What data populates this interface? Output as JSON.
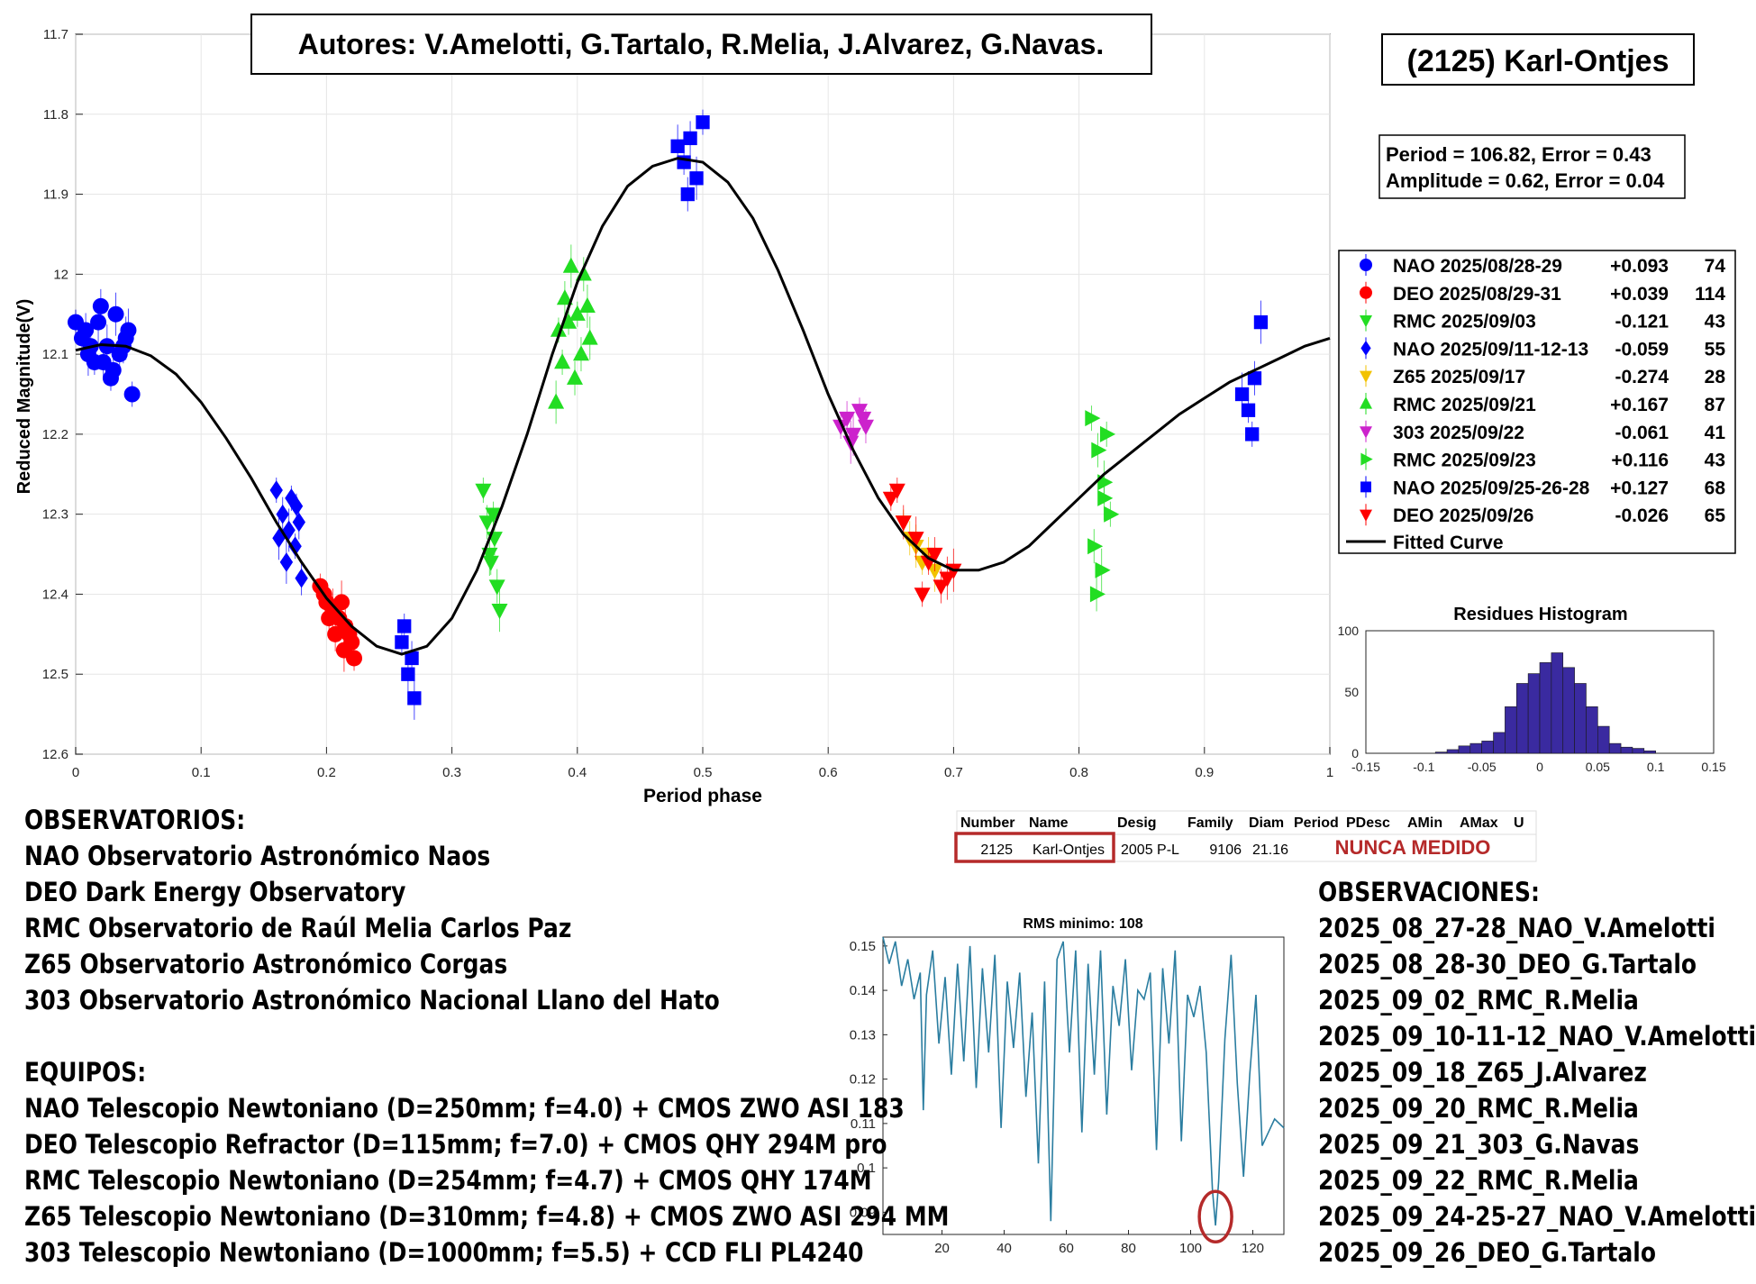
{
  "header": {
    "authors": "Autores: V.Amelotti, G.Tartalo, R.Melia, J.Alvarez, G.Navas.",
    "object_title": "(2125) Karl-Ontjes",
    "fit_period": "Period =  106.82, Error = 0.43",
    "fit_amplitude": "Amplitude = 0.62, Error = 0.04"
  },
  "colors": {
    "blue": "#0000ff",
    "red": "#ff0000",
    "green": "#22dd22",
    "gold": "#f2c200",
    "magenta": "#cc22cc",
    "curve": "#000000",
    "histogram": "#3a2aa0",
    "rms_line": "#2a7da0",
    "highlight": "#b52a2a"
  },
  "legend": [
    {
      "name": "NAO 2025/08/28-29",
      "offset": "+0.093",
      "count": "74",
      "marker": "circle",
      "color": "#0000ff"
    },
    {
      "name": "DEO 2025/08/29-31",
      "offset": "+0.039",
      "count": "114",
      "marker": "circle",
      "color": "#ff0000"
    },
    {
      "name": "RMC 2025/09/03",
      "offset": "-0.121",
      "count": "43",
      "marker": "triangle-down",
      "color": "#22dd22"
    },
    {
      "name": "NAO 2025/09/11-12-13",
      "offset": "-0.059",
      "count": "55",
      "marker": "diamond",
      "color": "#0000ff"
    },
    {
      "name": "Z65 2025/09/17",
      "offset": "-0.274",
      "count": "28",
      "marker": "triangle-down",
      "color": "#f2c200"
    },
    {
      "name": "RMC 2025/09/21",
      "offset": "+0.167",
      "count": "87",
      "marker": "triangle-up",
      "color": "#22dd22"
    },
    {
      "name": "303 2025/09/22",
      "offset": "-0.061",
      "count": "41",
      "marker": "triangle-down",
      "color": "#cc22cc"
    },
    {
      "name": "RMC 2025/09/23",
      "offset": "+0.116",
      "count": "43",
      "marker": "triangle-right",
      "color": "#22dd22"
    },
    {
      "name": "NAO 2025/09/25-26-28",
      "offset": "+0.127",
      "count": "68",
      "marker": "square",
      "color": "#0000ff"
    },
    {
      "name": "DEO 2025/09/26",
      "offset": "-0.026",
      "count": "65",
      "marker": "triangle-down",
      "color": "#ff0000"
    }
  ],
  "legend_fitted": "Fitted Curve",
  "chart_data": [
    {
      "type": "scatter",
      "xlabel": "Period phase",
      "ylabel": "Reduced Magnitude(V)",
      "xlim": [
        0,
        1
      ],
      "ylim": [
        11.7,
        12.6
      ],
      "y_reversed": true,
      "grid": true,
      "xticks": [
        "0",
        "0.1",
        "0.2",
        "0.3",
        "0.4",
        "0.5",
        "0.6",
        "0.7",
        "0.8",
        "0.9",
        "1"
      ],
      "yticks": [
        "11.7",
        "11.8",
        "11.9",
        "12",
        "12.1",
        "12.2",
        "12.3",
        "12.4",
        "12.5",
        "12.6"
      ],
      "fitted_curve": {
        "name": "Fitted Curve",
        "x": [
          0,
          0.02,
          0.04,
          0.06,
          0.08,
          0.1,
          0.12,
          0.14,
          0.16,
          0.18,
          0.2,
          0.22,
          0.24,
          0.26,
          0.28,
          0.3,
          0.32,
          0.34,
          0.36,
          0.38,
          0.4,
          0.42,
          0.44,
          0.46,
          0.48,
          0.5,
          0.52,
          0.54,
          0.56,
          0.58,
          0.6,
          0.62,
          0.64,
          0.66,
          0.68,
          0.7,
          0.72,
          0.74,
          0.76,
          0.78,
          0.8,
          0.82,
          0.84,
          0.86,
          0.88,
          0.9,
          0.92,
          0.94,
          0.96,
          0.98,
          1.0
        ],
        "y": [
          12.095,
          12.088,
          12.09,
          12.102,
          12.125,
          12.16,
          12.205,
          12.255,
          12.31,
          12.36,
          12.405,
          12.44,
          12.465,
          12.475,
          12.465,
          12.43,
          12.37,
          12.29,
          12.2,
          12.1,
          12.01,
          11.94,
          11.89,
          11.865,
          11.855,
          11.86,
          11.885,
          11.93,
          11.995,
          12.07,
          12.15,
          12.22,
          12.28,
          12.325,
          12.355,
          12.37,
          12.37,
          12.36,
          12.34,
          12.31,
          12.28,
          12.25,
          12.225,
          12.2,
          12.175,
          12.155,
          12.135,
          12.12,
          12.105,
          12.09,
          12.08
        ]
      },
      "series": [
        {
          "name": "NAO 2025/08/28-29",
          "marker": "circle",
          "color": "#0000ff",
          "x": [
            0.0,
            0.005,
            0.01,
            0.015,
            0.02,
            0.025,
            0.03,
            0.035,
            0.04,
            0.045,
            0.008,
            0.018,
            0.028,
            0.038,
            0.042,
            0.012,
            0.022,
            0.032
          ],
          "y": [
            12.06,
            12.08,
            12.1,
            12.11,
            12.04,
            12.09,
            12.12,
            12.1,
            12.08,
            12.15,
            12.07,
            12.06,
            12.13,
            12.09,
            12.07,
            12.09,
            12.11,
            12.05
          ]
        },
        {
          "name": "DEO 2025/08/29-31",
          "marker": "circle",
          "color": "#ff0000",
          "x": [
            0.195,
            0.2,
            0.205,
            0.21,
            0.215,
            0.22,
            0.198,
            0.207,
            0.212,
            0.218,
            0.202,
            0.214,
            0.222
          ],
          "y": [
            12.39,
            12.41,
            12.42,
            12.43,
            12.44,
            12.46,
            12.4,
            12.45,
            12.41,
            12.45,
            12.43,
            12.47,
            12.48
          ]
        },
        {
          "name": "RMC 2025/09/03",
          "marker": "triangle-down",
          "color": "#22dd22",
          "x": [
            0.325,
            0.328,
            0.33,
            0.333,
            0.336,
            0.338,
            0.331,
            0.334
          ],
          "y": [
            12.27,
            12.31,
            12.35,
            12.3,
            12.39,
            12.42,
            12.36,
            12.33
          ]
        },
        {
          "name": "NAO 2025/09/11-12-13",
          "marker": "diamond",
          "color": "#0000ff",
          "x": [
            0.16,
            0.165,
            0.17,
            0.175,
            0.18,
            0.168,
            0.172,
            0.178,
            0.162,
            0.176
          ],
          "y": [
            12.27,
            12.3,
            12.32,
            12.34,
            12.38,
            12.36,
            12.28,
            12.31,
            12.33,
            12.29
          ]
        },
        {
          "name": "Z65 2025/09/17",
          "marker": "triangle-down",
          "color": "#f2c200",
          "x": [
            0.66,
            0.665,
            0.67,
            0.675,
            0.68,
            0.685
          ],
          "y": [
            12.31,
            12.33,
            12.34,
            12.36,
            12.35,
            12.37
          ]
        },
        {
          "name": "RMC 2025/09/21",
          "marker": "triangle-up",
          "color": "#22dd22",
          "x": [
            0.385,
            0.39,
            0.395,
            0.4,
            0.405,
            0.41,
            0.388,
            0.398,
            0.408,
            0.393,
            0.403,
            0.383
          ],
          "y": [
            12.07,
            12.03,
            11.99,
            12.05,
            12.0,
            12.08,
            12.11,
            12.13,
            12.04,
            12.06,
            12.1,
            12.16
          ]
        },
        {
          "name": "303 2025/09/22",
          "marker": "triangle-down",
          "color": "#cc22cc",
          "x": [
            0.61,
            0.615,
            0.62,
            0.625,
            0.63,
            0.618,
            0.628
          ],
          "y": [
            12.19,
            12.18,
            12.2,
            12.17,
            12.19,
            12.21,
            12.18
          ]
        },
        {
          "name": "RMC 2025/09/23",
          "marker": "triangle-right",
          "color": "#22dd22",
          "x": [
            0.81,
            0.815,
            0.82,
            0.825,
            0.812,
            0.818,
            0.822,
            0.814,
            0.82
          ],
          "y": [
            12.18,
            12.22,
            12.26,
            12.3,
            12.34,
            12.37,
            12.2,
            12.4,
            12.28
          ]
        },
        {
          "name": "NAO 2025/09/25-26-28",
          "marker": "square",
          "color": "#0000ff",
          "x": [
            0.26,
            0.265,
            0.27,
            0.262,
            0.268,
            0.48,
            0.485,
            0.49,
            0.495,
            0.5,
            0.488,
            0.93,
            0.935,
            0.94,
            0.945,
            0.938
          ],
          "y": [
            12.46,
            12.5,
            12.53,
            12.44,
            12.48,
            11.84,
            11.86,
            11.83,
            11.88,
            11.81,
            11.9,
            12.15,
            12.17,
            12.13,
            12.06,
            12.2
          ]
        },
        {
          "name": "DEO 2025/09/26",
          "marker": "triangle-down",
          "color": "#ff0000",
          "x": [
            0.65,
            0.66,
            0.67,
            0.68,
            0.69,
            0.7,
            0.675,
            0.685,
            0.695,
            0.655
          ],
          "y": [
            12.28,
            12.31,
            12.33,
            12.36,
            12.39,
            12.37,
            12.4,
            12.35,
            12.38,
            12.27
          ]
        }
      ]
    },
    {
      "type": "bar",
      "title": "Residues Histogram",
      "xlim": [
        -0.15,
        0.15
      ],
      "ylim": [
        0,
        100
      ],
      "xticks": [
        "-0.15",
        "-0.1",
        "-0.05",
        "0",
        "0.05",
        "0.1",
        "0.15"
      ],
      "yticks": [
        "0",
        "50",
        "100"
      ],
      "bin_width": 0.01,
      "bins_start": -0.09,
      "values": [
        1,
        3,
        6,
        8,
        10,
        17,
        38,
        57,
        65,
        74,
        82,
        70,
        57,
        38,
        22,
        8,
        5,
        4,
        2
      ]
    },
    {
      "type": "line",
      "title": "RMS minimo: 108",
      "xlim": [
        1,
        130
      ],
      "ylim": [
        0.085,
        0.152
      ],
      "xticks": [
        "20",
        "40",
        "60",
        "80",
        "100",
        "120"
      ],
      "yticks": [
        "0.09",
        "0.1",
        "0.11",
        "0.12",
        "0.13",
        "0.14",
        "0.15"
      ],
      "highlight_x": 108,
      "x": [
        1,
        3,
        5,
        7,
        9,
        11,
        13,
        14,
        15,
        17,
        19,
        21,
        23,
        25,
        27,
        29,
        31,
        33,
        35,
        37,
        39,
        41,
        43,
        45,
        47,
        49,
        51,
        53,
        55,
        57,
        59,
        61,
        63,
        65,
        67,
        69,
        71,
        73,
        75,
        77,
        79,
        81,
        83,
        85,
        87,
        89,
        91,
        93,
        95,
        97,
        99,
        101,
        103,
        105,
        107,
        108,
        109,
        111,
        113,
        115,
        117,
        119,
        121,
        123,
        125,
        127,
        130
      ],
      "y": [
        0.152,
        0.146,
        0.151,
        0.141,
        0.147,
        0.138,
        0.144,
        0.113,
        0.139,
        0.149,
        0.128,
        0.143,
        0.121,
        0.146,
        0.124,
        0.15,
        0.118,
        0.145,
        0.126,
        0.148,
        0.109,
        0.142,
        0.127,
        0.144,
        0.116,
        0.135,
        0.101,
        0.142,
        0.088,
        0.147,
        0.151,
        0.126,
        0.149,
        0.108,
        0.146,
        0.121,
        0.149,
        0.112,
        0.141,
        0.132,
        0.147,
        0.122,
        0.14,
        0.138,
        0.144,
        0.104,
        0.145,
        0.128,
        0.149,
        0.106,
        0.139,
        0.134,
        0.141,
        0.126,
        0.095,
        0.087,
        0.097,
        0.129,
        0.148,
        0.119,
        0.098,
        0.121,
        0.139,
        0.105,
        0.108,
        0.111,
        0.109
      ]
    }
  ],
  "hist_title": "Residues Histogram",
  "rms_title": "RMS minimo: 108",
  "xlabel": "Period phase",
  "ylabel": "Reduced Magnitude(V)",
  "table": {
    "headers": [
      "Number",
      "Name",
      "Desig",
      "Family",
      "Diam",
      "Period",
      "PDesc",
      "AMin",
      "AMax",
      "U"
    ],
    "row": [
      "2125",
      "Karl-Ontjes",
      "2005 P-L",
      "9106",
      "21.16"
    ],
    "status": "NUNCA MEDIDO"
  },
  "observatorios": {
    "title": "OBSERVATORIOS:",
    "items": [
      "NAO Observatorio Astronómico Naos",
      "DEO Dark Energy Observatory",
      "RMC Observatorio de Raúl Melia Carlos Paz",
      "Z65 Observatorio Astronómico Corgas",
      "303 Observatorio Astronómico Nacional Llano del Hato"
    ]
  },
  "equipos": {
    "title": "EQUIPOS:",
    "items": [
      "NAO Telescopio Newtoniano (D=250mm; f=4.0) + CMOS ZWO ASI 183",
      "DEO Telescopio Refractor (D=115mm; f=7.0) + CMOS QHY 294M pro",
      "RMC Telescopio Newtoniano (D=254mm; f=4.7) + CMOS QHY 174M",
      "Z65 Telescopio Newtoniano (D=310mm; f=4.8) + CMOS ZWO ASI 294 MM",
      "303 Telescopio Newtoniano (D=1000mm; f=5.5) + CCD FLI PL4240"
    ]
  },
  "observaciones": {
    "title": "OBSERVACIONES:",
    "items": [
      "2025_08_27-28_NAO_V.Amelotti",
      "2025_08_28-30_DEO_G.Tartalo",
      "2025_09_02_RMC_R.Melia",
      "2025_09_10-11-12_NAO_V.Amelotti",
      "2025_09_18_Z65_J.Alvarez",
      "2025_09_20_RMC_R.Melia",
      "2025_09_21_303_G.Navas",
      "2025_09_22_RMC_R.Melia",
      "2025_09_24-25-27_NAO_V.Amelotti",
      "2025_09_26_DEO_G.Tartalo"
    ]
  }
}
